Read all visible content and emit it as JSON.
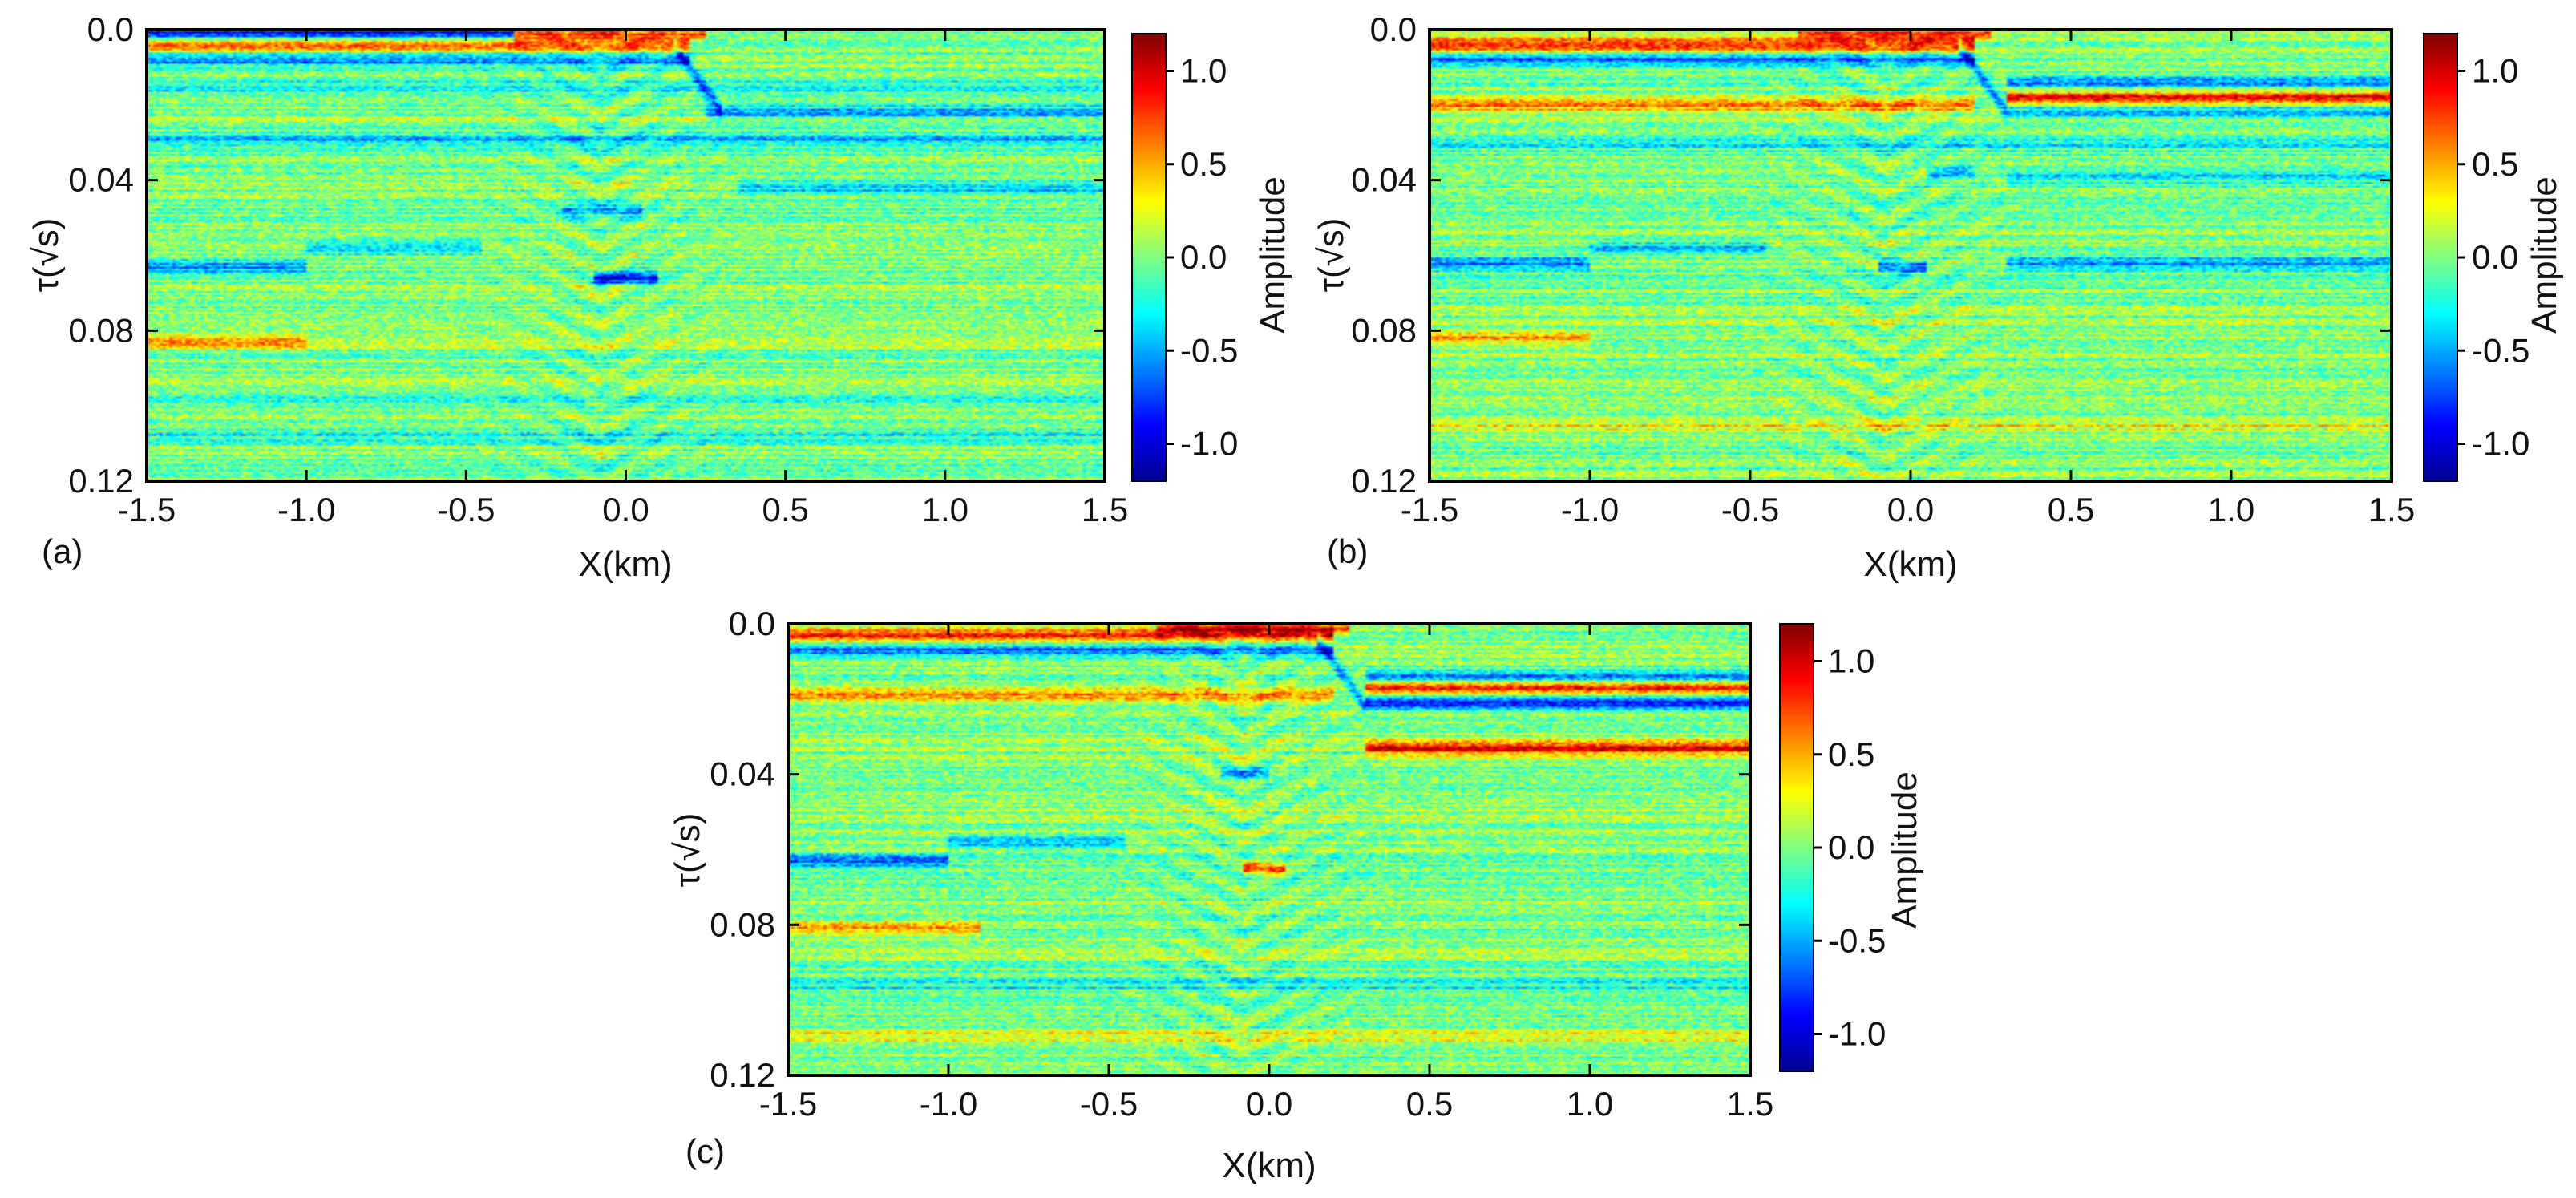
{
  "figure": {
    "colormap": [
      "#00008f",
      "#0000ff",
      "#0080ff",
      "#00ffff",
      "#80ff80",
      "#ffff00",
      "#ff8000",
      "#ff0000",
      "#800000"
    ],
    "frame_color": "#000000"
  },
  "chart_data": [
    {
      "type": "heatmap",
      "panel": "(a)",
      "xlabel": "X(km)",
      "ylabel": "τ(√s)",
      "xlim": [
        -1.5,
        1.5
      ],
      "ylim": [
        0.0,
        0.12
      ],
      "xticks": [
        "-1.5",
        "-1.0",
        "-0.5",
        "0.0",
        "0.5",
        "1.0",
        "1.5"
      ],
      "yticks": [
        "0.0",
        "0.04",
        "0.08",
        "0.12"
      ],
      "colorbar": {
        "label": "Amplitude",
        "range": [
          -1.2,
          1.2
        ],
        "ticks": [
          "1.0",
          "0.5",
          "0.0",
          "-0.5",
          "-1.0"
        ]
      },
      "base_reflectors": [
        {
          "tau": 0.001,
          "amp": -0.9,
          "x_from": -1.5,
          "x_to": -0.35
        },
        {
          "tau": 0.004,
          "amp": 0.8,
          "x_from": -1.5,
          "x_to": 0.2
        },
        {
          "tau": 0.008,
          "amp": -0.6,
          "x_from": -1.5,
          "x_to": 0.2
        },
        {
          "tau": 0.015,
          "amp": -0.3,
          "x_from": -1.5,
          "x_to": 1.5
        },
        {
          "tau": 0.022,
          "amp": -0.5,
          "x_from": 0.25,
          "x_to": 1.5
        },
        {
          "tau": 0.029,
          "amp": -0.4,
          "x_from": -1.5,
          "x_to": 1.5
        },
        {
          "tau": 0.042,
          "amp": -0.45,
          "x_from": 0.35,
          "x_to": 1.5
        },
        {
          "tau": 0.058,
          "amp": -0.4,
          "x_from": -1.0,
          "x_to": -0.45
        },
        {
          "tau": 0.063,
          "amp": -0.55,
          "x_from": -1.5,
          "x_to": -1.0
        },
        {
          "tau": 0.083,
          "amp": 0.45,
          "x_from": -1.5,
          "x_to": -1.0
        },
        {
          "tau": 0.098,
          "amp": -0.25,
          "x_from": -1.5,
          "x_to": 1.5
        },
        {
          "tau": 0.108,
          "amp": -0.25,
          "x_from": -1.5,
          "x_to": 1.5
        }
      ],
      "dome_reflectors": [
        {
          "tau": 0.001,
          "amp": 0.7,
          "x_from": -0.35,
          "x_to": 0.25
        },
        {
          "tau": 0.066,
          "amp": -0.9,
          "x_from": -0.1,
          "x_to": 0.1
        },
        {
          "tau": 0.048,
          "amp": -0.5,
          "x_from": -0.2,
          "x_to": 0.05
        }
      ]
    },
    {
      "type": "heatmap",
      "panel": "(b)",
      "xlabel": "X(km)",
      "ylabel": "τ(√s)",
      "xlim": [
        -1.5,
        1.5
      ],
      "ylim": [
        0.0,
        0.12
      ],
      "xticks": [
        "-1.5",
        "-1.0",
        "-0.5",
        "0.0",
        "0.5",
        "1.0",
        "1.5"
      ],
      "yticks": [
        "0.0",
        "0.04",
        "0.08",
        "0.12"
      ],
      "colorbar": {
        "label": "Amplitude",
        "range": [
          -1.2,
          1.2
        ],
        "ticks": [
          "1.0",
          "0.5",
          "0.0",
          "-0.5",
          "-1.0"
        ]
      },
      "base_reflectors": [
        {
          "tau": 0.004,
          "amp": 0.85,
          "x_from": -1.5,
          "x_to": 0.2
        },
        {
          "tau": 0.008,
          "amp": -0.6,
          "x_from": -1.5,
          "x_to": 0.2
        },
        {
          "tau": 0.014,
          "amp": -0.5,
          "x_from": 0.3,
          "x_to": 1.5
        },
        {
          "tau": 0.018,
          "amp": 0.9,
          "x_from": 0.3,
          "x_to": 1.5
        },
        {
          "tau": 0.02,
          "amp": 0.6,
          "x_from": -1.5,
          "x_to": 0.2
        },
        {
          "tau": 0.022,
          "amp": -0.45,
          "x_from": 0.3,
          "x_to": 1.5
        },
        {
          "tau": 0.03,
          "amp": -0.35,
          "x_from": -1.5,
          "x_to": 1.5
        },
        {
          "tau": 0.039,
          "amp": -0.35,
          "x_from": 0.3,
          "x_to": 1.5
        },
        {
          "tau": 0.058,
          "amp": -0.4,
          "x_from": -1.0,
          "x_to": -0.45
        },
        {
          "tau": 0.062,
          "amp": -0.6,
          "x_from": -1.5,
          "x_to": -1.0
        },
        {
          "tau": 0.062,
          "amp": -0.55,
          "x_from": 0.3,
          "x_to": 1.5
        },
        {
          "tau": 0.082,
          "amp": 0.5,
          "x_from": -1.5,
          "x_to": -1.0
        },
        {
          "tau": 0.105,
          "amp": 0.3,
          "x_from": -1.5,
          "x_to": 1.5
        }
      ],
      "dome_reflectors": [
        {
          "tau": 0.001,
          "amp": 0.7,
          "x_from": -0.35,
          "x_to": 0.25
        },
        {
          "tau": 0.063,
          "amp": -0.7,
          "x_from": -0.1,
          "x_to": 0.05
        },
        {
          "tau": 0.038,
          "amp": -0.5,
          "x_from": 0.05,
          "x_to": 0.2
        }
      ]
    },
    {
      "type": "heatmap",
      "panel": "(c)",
      "xlabel": "X(km)",
      "ylabel": "τ(√s)",
      "xlim": [
        -1.5,
        1.5
      ],
      "ylim": [
        0.0,
        0.12
      ],
      "xticks": [
        "-1.5",
        "-1.0",
        "-0.5",
        "0.0",
        "0.5",
        "1.0",
        "1.5"
      ],
      "yticks": [
        "0.0",
        "0.04",
        "0.08",
        "0.12"
      ],
      "colorbar": {
        "label": "Amplitude",
        "range": [
          -1.2,
          1.2
        ],
        "ticks": [
          "1.0",
          "0.5",
          "0.0",
          "-0.5",
          "-1.0"
        ]
      },
      "base_reflectors": [
        {
          "tau": 0.003,
          "amp": 0.9,
          "x_from": -1.5,
          "x_to": 0.2
        },
        {
          "tau": 0.007,
          "amp": -0.7,
          "x_from": -1.5,
          "x_to": 0.2
        },
        {
          "tau": 0.014,
          "amp": -0.55,
          "x_from": 0.3,
          "x_to": 1.5
        },
        {
          "tau": 0.017,
          "amp": 0.85,
          "x_from": 0.3,
          "x_to": 1.5
        },
        {
          "tau": 0.019,
          "amp": 0.6,
          "x_from": -1.5,
          "x_to": 0.2
        },
        {
          "tau": 0.021,
          "amp": -0.8,
          "x_from": 0.3,
          "x_to": 1.5
        },
        {
          "tau": 0.033,
          "amp": 0.9,
          "x_from": 0.3,
          "x_to": 1.5
        },
        {
          "tau": 0.058,
          "amp": -0.45,
          "x_from": -1.0,
          "x_to": -0.45
        },
        {
          "tau": 0.063,
          "amp": -0.6,
          "x_from": -1.5,
          "x_to": -1.0
        },
        {
          "tau": 0.081,
          "amp": 0.55,
          "x_from": -1.5,
          "x_to": -0.9
        },
        {
          "tau": 0.096,
          "amp": -0.3,
          "x_from": -1.5,
          "x_to": 1.5
        },
        {
          "tau": 0.11,
          "amp": 0.3,
          "x_from": -1.5,
          "x_to": 1.5
        }
      ],
      "dome_reflectors": [
        {
          "tau": 0.001,
          "amp": 0.7,
          "x_from": -0.35,
          "x_to": 0.25
        },
        {
          "tau": 0.065,
          "amp": 0.8,
          "x_from": -0.08,
          "x_to": 0.05
        },
        {
          "tau": 0.04,
          "amp": -0.45,
          "x_from": -0.15,
          "x_to": 0.0
        }
      ]
    }
  ]
}
